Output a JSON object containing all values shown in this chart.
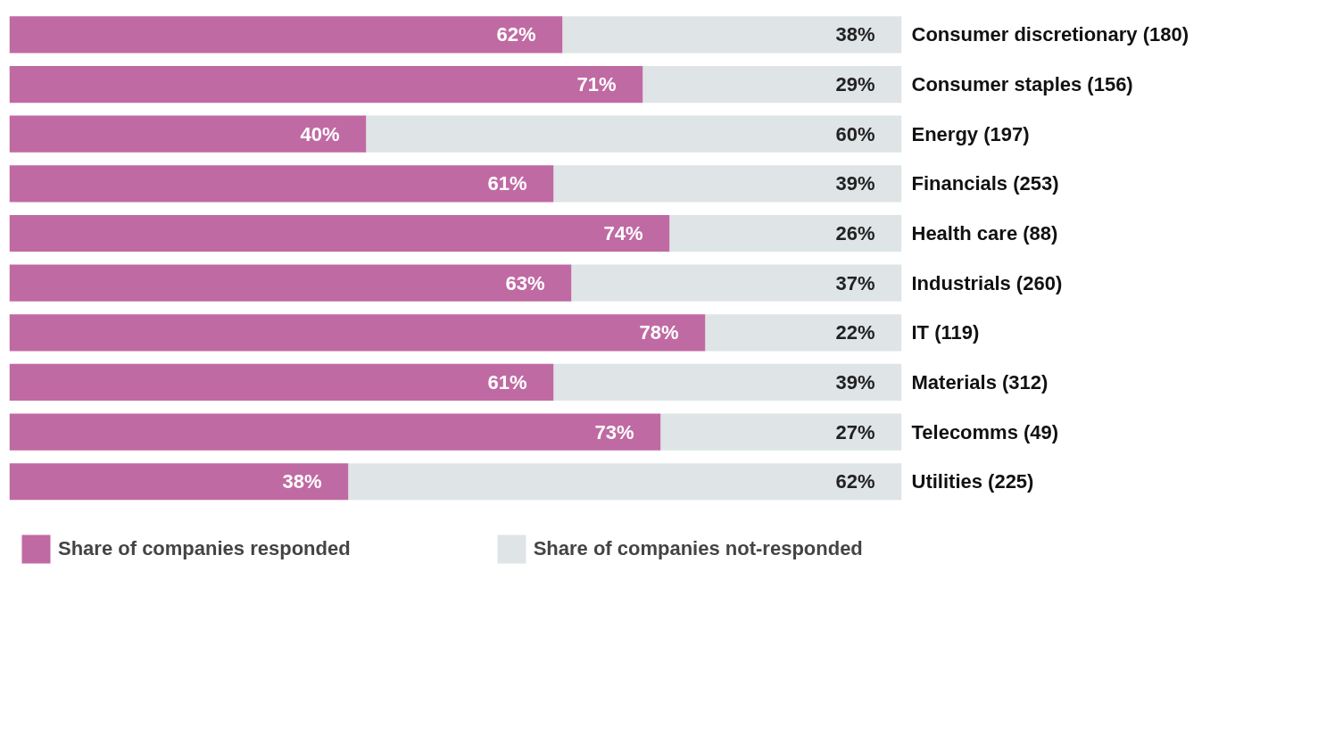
{
  "chart_data": {
    "type": "bar",
    "orientation": "horizontal",
    "stacked": true,
    "legend": "bottom",
    "grid": false,
    "categories": [
      "Consumer discretionary (180)",
      "Consumer staples (156)",
      "Energy (197)",
      "Financials (253)",
      "Health care (88)",
      "Industrials (260)",
      "IT (119)",
      "Materials (312)",
      "Telecomms (49)",
      "Utilities (225)"
    ],
    "series": [
      {
        "name": "Share of companies responded",
        "color": "#c06aa3",
        "values": [
          62,
          71,
          40,
          61,
          74,
          63,
          78,
          61,
          73,
          38
        ],
        "value_labels": [
          "62%",
          "71%",
          "40%",
          "61%",
          "74%",
          "63%",
          "78%",
          "61%",
          "73%",
          "38%"
        ]
      },
      {
        "name": "Share of companies not-responded",
        "color": "#dfe4e6",
        "values": [
          38,
          29,
          60,
          39,
          26,
          37,
          22,
          39,
          27,
          62
        ],
        "value_labels": [
          "38%",
          "29%",
          "60%",
          "39%",
          "26%",
          "37%",
          "22%",
          "39%",
          "27%",
          "62%"
        ]
      }
    ]
  }
}
